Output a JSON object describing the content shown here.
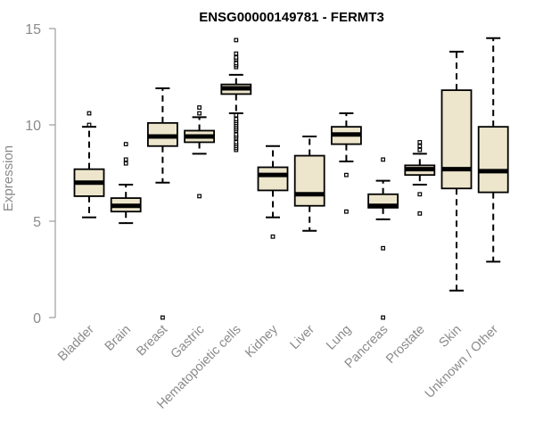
{
  "chart_data": {
    "type": "boxplot",
    "title": "ENSG00000149781 - FERMT3",
    "xlabel": "",
    "ylabel": "Expression",
    "ylim": [
      0,
      15
    ],
    "yticks": [
      0,
      5,
      10,
      15
    ],
    "grid": false,
    "colors": {
      "box_fill": "#ede6cc",
      "line": "#000000",
      "axis": "#8a8a8a"
    },
    "categories": [
      "Bladder",
      "Brain",
      "Breast",
      "Gastric",
      "Hematopoietic cells",
      "Kidney",
      "Liver",
      "Lung",
      "Pancreas",
      "Prostate",
      "Skin",
      "Unknown / Other"
    ],
    "series": [
      {
        "name": "Bladder",
        "whisker_low": 5.2,
        "q1": 6.3,
        "median": 7.0,
        "q3": 7.7,
        "whisker_high": 9.9,
        "outliers": [
          10.0,
          10.6
        ]
      },
      {
        "name": "Brain",
        "whisker_low": 4.9,
        "q1": 5.5,
        "median": 5.8,
        "q3": 6.2,
        "whisker_high": 6.9,
        "outliers": [
          8.0,
          8.2,
          9.0
        ]
      },
      {
        "name": "Breast",
        "whisker_low": 7.0,
        "q1": 8.9,
        "median": 9.4,
        "q3": 10.1,
        "whisker_high": 11.9,
        "outliers": [
          0.0
        ]
      },
      {
        "name": "Gastric",
        "whisker_low": 8.5,
        "q1": 9.1,
        "median": 9.4,
        "q3": 9.7,
        "whisker_high": 10.4,
        "outliers": [
          6.3,
          10.6,
          10.9
        ]
      },
      {
        "name": "Hematopoietic cells",
        "whisker_low": 10.6,
        "q1": 11.6,
        "median": 11.9,
        "q3": 12.1,
        "whisker_high": 12.6,
        "outliers": [
          8.7,
          8.8,
          8.9,
          9.0,
          9.1,
          9.3,
          9.4,
          9.5,
          9.7,
          9.8,
          9.9,
          10.0,
          10.1,
          10.2,
          10.3,
          10.5,
          13.0,
          13.1,
          13.2,
          13.4,
          13.5,
          13.7,
          14.4
        ]
      },
      {
        "name": "Kidney",
        "whisker_low": 5.2,
        "q1": 6.6,
        "median": 7.4,
        "q3": 7.8,
        "whisker_high": 8.9,
        "outliers": [
          4.2
        ]
      },
      {
        "name": "Liver",
        "whisker_low": 4.5,
        "q1": 5.8,
        "median": 6.4,
        "q3": 8.4,
        "whisker_high": 9.4,
        "outliers": []
      },
      {
        "name": "Lung",
        "whisker_low": 8.1,
        "q1": 9.0,
        "median": 9.5,
        "q3": 9.9,
        "whisker_high": 10.6,
        "outliers": [
          5.5,
          7.4
        ]
      },
      {
        "name": "Pancreas",
        "whisker_low": 5.1,
        "q1": 5.7,
        "median": 5.8,
        "q3": 6.4,
        "whisker_high": 7.1,
        "outliers": [
          0.0,
          3.6,
          8.2
        ]
      },
      {
        "name": "Prostate",
        "whisker_low": 6.9,
        "q1": 7.4,
        "median": 7.7,
        "q3": 7.9,
        "whisker_high": 8.5,
        "outliers": [
          5.4,
          6.4,
          8.7,
          8.9,
          9.1
        ]
      },
      {
        "name": "Skin",
        "whisker_low": 1.4,
        "q1": 6.7,
        "median": 7.7,
        "q3": 11.8,
        "whisker_high": 13.8,
        "outliers": []
      },
      {
        "name": "Unknown / Other",
        "whisker_low": 2.9,
        "q1": 6.5,
        "median": 7.6,
        "q3": 9.9,
        "whisker_high": 14.5,
        "outliers": []
      }
    ]
  }
}
